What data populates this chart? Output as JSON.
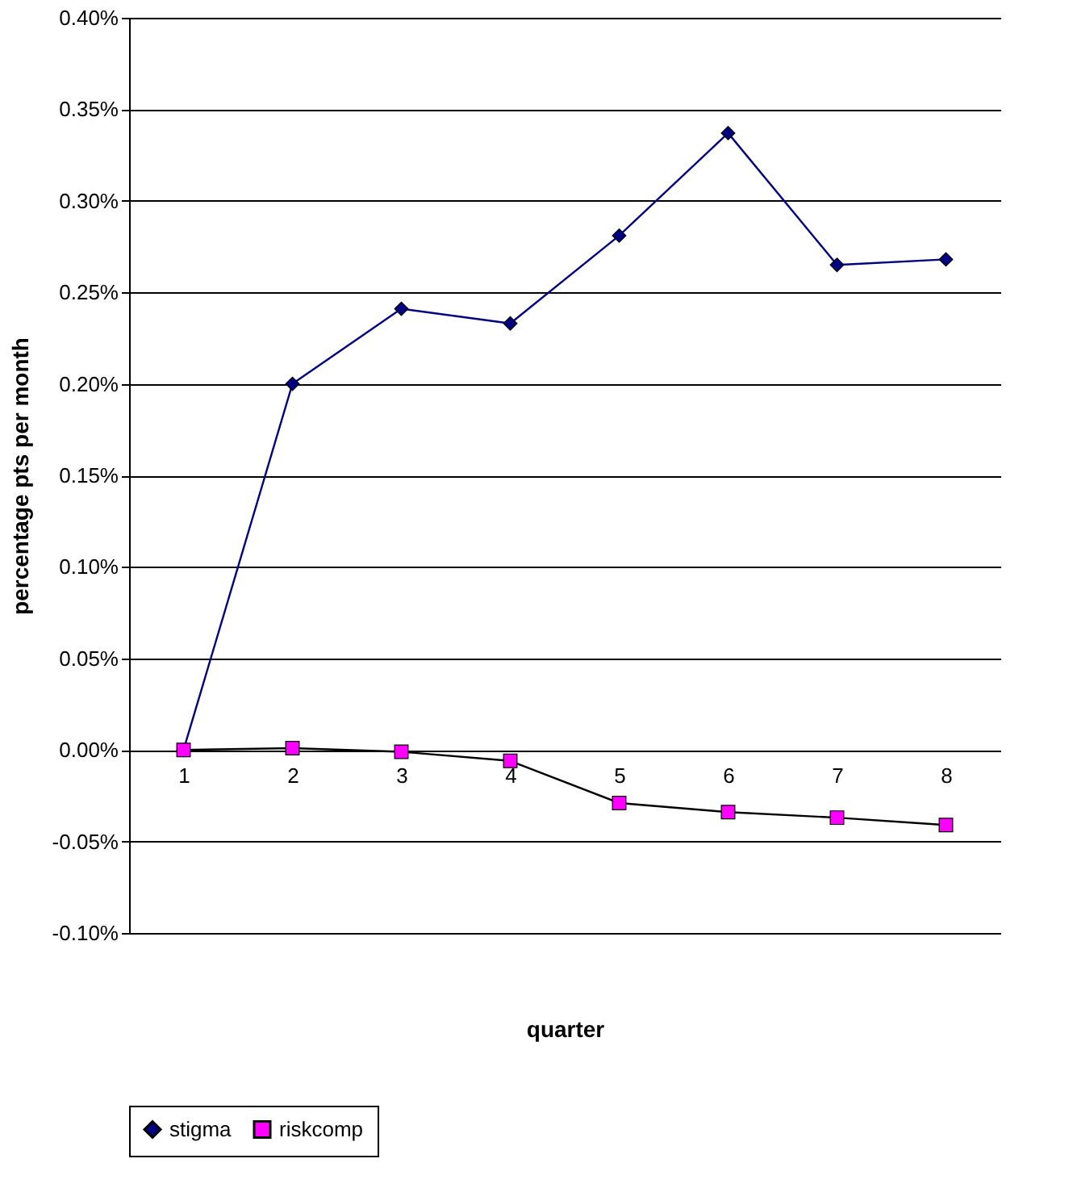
{
  "chart_data": {
    "type": "line",
    "xlabel": "quarter",
    "ylabel": "percentage pts per month",
    "categories": [
      "1",
      "2",
      "3",
      "4",
      "5",
      "6",
      "7",
      "8"
    ],
    "series": [
      {
        "name": "stigma",
        "color": "#000080",
        "marker": "diamond",
        "values": [
          0.0,
          0.2,
          0.241,
          0.233,
          0.281,
          0.337,
          0.265,
          0.268
        ]
      },
      {
        "name": "riskcomp",
        "color": "#ff00ff",
        "marker": "square",
        "values": [
          0.0,
          0.001,
          -0.001,
          -0.006,
          -0.029,
          -0.034,
          -0.037,
          -0.041
        ]
      }
    ],
    "ylim": [
      -0.1,
      0.4
    ],
    "yticks": [
      {
        "value": -0.1,
        "label": "-0.10%"
      },
      {
        "value": -0.05,
        "label": "-0.05%"
      },
      {
        "value": 0,
        "label": "0.00%"
      },
      {
        "value": 0.05,
        "label": "0.05%"
      },
      {
        "value": 0.1,
        "label": "0.10%"
      },
      {
        "value": 0.15,
        "label": "0.15%"
      },
      {
        "value": 0.2,
        "label": "0.20%"
      },
      {
        "value": 0.25,
        "label": "0.25%"
      },
      {
        "value": 0.3,
        "label": "0.30%"
      },
      {
        "value": 0.35,
        "label": "0.35%"
      },
      {
        "value": 0.4,
        "label": "0.40%"
      }
    ],
    "grid": "y",
    "legend": "bottom",
    "line_style": "solid"
  }
}
